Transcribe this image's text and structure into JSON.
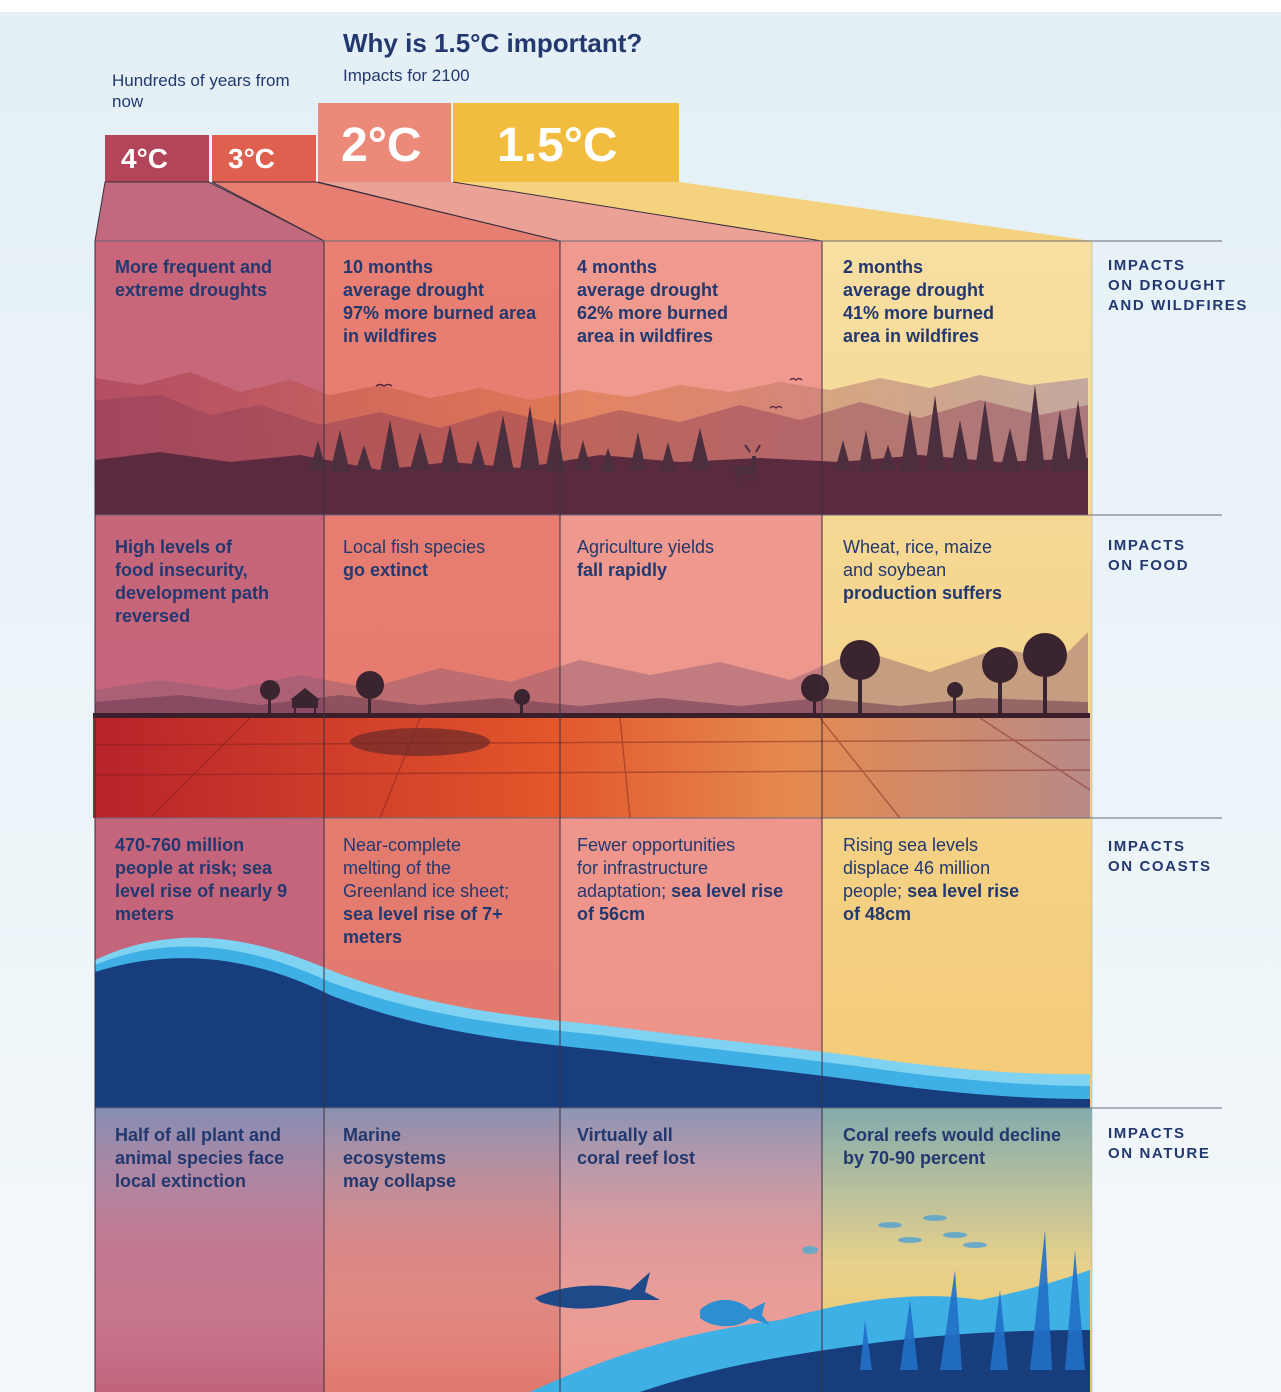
{
  "header": {
    "title": "Why is 1.5°C important?",
    "subtitle": "Impacts for 2100",
    "hundreds_label": "Hundreds of years from now"
  },
  "scenarios": [
    {
      "label": "4°C",
      "color": "#b3455a"
    },
    {
      "label": "3°C",
      "color": "#e0604f"
    },
    {
      "label": "2°C",
      "color": "#ec8a79"
    },
    {
      "label": "1.5°C",
      "color": "#f2bd3e"
    }
  ],
  "rows": [
    {
      "label_line1": "IMPACTS",
      "label_line2": "ON DROUGHT",
      "label_line3": "AND WILDFIRES",
      "cells": [
        {
          "line1": "More frequent and",
          "line2": "extreme droughts",
          "line3": "",
          "line4": ""
        },
        {
          "line1": "10 months",
          "line2": "average drought",
          "line3": "97% more burned area",
          "line4": "in wildfires"
        },
        {
          "line1": "4 months",
          "line2": "average drought",
          "line3": "62% more burned",
          "line4": "area in wildfires"
        },
        {
          "line1": "2 months",
          "line2": "average drought",
          "line3": "41% more burned",
          "line4": "area in wildfires"
        }
      ]
    },
    {
      "label_line1": "IMPACTS",
      "label_line2": "ON FOOD",
      "label_line3": "",
      "cells": [
        {
          "line1": "High levels of",
          "line2": "food insecurity,",
          "line3": "development path",
          "line4": "reversed"
        },
        {
          "plain1": "Local fish species",
          "bold1": "go extinct"
        },
        {
          "plain1": "Agriculture yields",
          "bold1": "fall rapidly"
        },
        {
          "plain1": "Wheat, rice, maize",
          "plain2": "and soybean",
          "bold1": "production suffers"
        }
      ]
    },
    {
      "label_line1": "IMPACTS",
      "label_line2": "ON COASTS",
      "label_line3": "",
      "cells": [
        {
          "line1": "470-760 million",
          "line2": "people at risk; sea",
          "line3": "level rise of nearly 9",
          "line4": "meters"
        },
        {
          "plain1": "Near-complete",
          "plain2": "melting of the",
          "plain3": "Greenland ice sheet;",
          "bold1": "sea level rise of 7+",
          "bold2": "meters"
        },
        {
          "plain1": "Fewer opportunities",
          "plain2": "for infrastructure",
          "plain3": "adaptation; ",
          "bold1": "sea level rise",
          "bold2": "of 56cm"
        },
        {
          "plain1": "Rising sea levels",
          "plain2": "displace 46 million",
          "plain3": "people; ",
          "bold1": "sea level rise",
          "bold2": "of 48cm"
        }
      ]
    },
    {
      "label_line1": "IMPACTS",
      "label_line2": "ON NATURE",
      "label_line3": "",
      "cells": [
        {
          "line1": "Half of all plant and",
          "line2": "animal species face",
          "line3": "local extinction"
        },
        {
          "line1": "Marine",
          "line2": "ecosystems",
          "line3": "may collapse"
        },
        {
          "line1": "Virtually all",
          "line2": "coral reef lost"
        },
        {
          "line1": "Coral reefs would decline",
          "line2": "by 70-90 percent"
        }
      ]
    }
  ],
  "colors": {
    "text": "#22386e",
    "ocean": "#173d7d",
    "wave_light": "#7fd2f2",
    "wave_mid": "#3fb0e6"
  },
  "icons": [
    "mountain-silhouette",
    "pine-tree",
    "deer",
    "bird",
    "hut",
    "shark",
    "fish",
    "coral"
  ]
}
